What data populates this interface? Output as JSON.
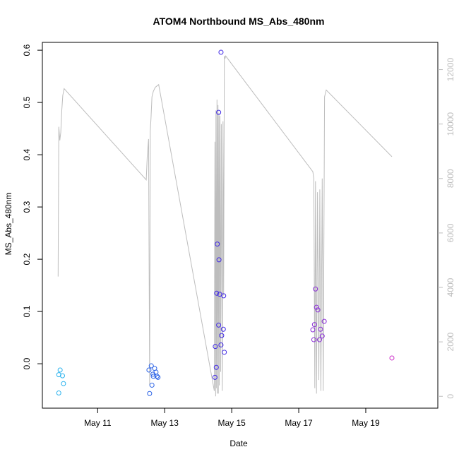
{
  "chart_data": {
    "type": "scatter",
    "title": "ATOM4 Northbound MS_Abs_480nm",
    "xlabel": "Date",
    "ylabel": "MS_Abs_480nm",
    "x_units": "days since May 10 00:00",
    "xlim": [
      -0.65,
      11.15
    ],
    "ylim": [
      -0.085,
      0.615
    ],
    "y2lim": [
      -435,
      13000
    ],
    "x_ticks": [
      {
        "value": 1,
        "label": "May 11"
      },
      {
        "value": 3,
        "label": "May 13"
      },
      {
        "value": 5,
        "label": "May 15"
      },
      {
        "value": 7,
        "label": "May 17"
      },
      {
        "value": 9,
        "label": "May 19"
      }
    ],
    "y_ticks": [
      {
        "value": 0.0,
        "label": "0.0"
      },
      {
        "value": 0.1,
        "label": "0.1"
      },
      {
        "value": 0.2,
        "label": "0.2"
      },
      {
        "value": 0.3,
        "label": "0.3"
      },
      {
        "value": 0.4,
        "label": "0.4"
      },
      {
        "value": 0.5,
        "label": "0.5"
      },
      {
        "value": 0.6,
        "label": "0.6"
      }
    ],
    "y2_ticks": [
      {
        "value": 0,
        "label": "0"
      },
      {
        "value": 2000,
        "label": "2000"
      },
      {
        "value": 4000,
        "label": "4000"
      },
      {
        "value": 6000,
        "label": "6000"
      },
      {
        "value": 8000,
        "label": "8000"
      },
      {
        "value": 10000,
        "label": "10000"
      },
      {
        "value": 12000,
        "label": "12000"
      }
    ],
    "series": [
      {
        "name": "MS_Abs_480nm",
        "kind": "points",
        "points": [
          {
            "x": -0.16,
            "y": -0.056,
            "color": "#2bb3ee"
          },
          {
            "x": -0.16,
            "y": -0.021,
            "color": "#2bb3ee"
          },
          {
            "x": -0.12,
            "y": -0.012,
            "color": "#2bb3ee"
          },
          {
            "x": -0.05,
            "y": -0.023,
            "color": "#2bb3ee"
          },
          {
            "x": -0.02,
            "y": -0.038,
            "color": "#2bb3ee"
          },
          {
            "x": 2.55,
            "y": -0.057,
            "color": "#2a62e6"
          },
          {
            "x": 2.53,
            "y": -0.012,
            "color": "#2a62e6"
          },
          {
            "x": 2.6,
            "y": -0.004,
            "color": "#2a62e6"
          },
          {
            "x": 2.62,
            "y": -0.041,
            "color": "#2a62e6"
          },
          {
            "x": 2.65,
            "y": -0.02,
            "color": "#2a62e6"
          },
          {
            "x": 2.66,
            "y": -0.024,
            "color": "#2a62e6"
          },
          {
            "x": 2.7,
            "y": -0.009,
            "color": "#2a62e6"
          },
          {
            "x": 2.74,
            "y": -0.016,
            "color": "#2a62e6"
          },
          {
            "x": 2.77,
            "y": -0.024,
            "color": "#2a62e6"
          },
          {
            "x": 2.8,
            "y": -0.026,
            "color": "#2a62e6"
          },
          {
            "x": 4.5,
            "y": -0.026,
            "color": "#3f28e6"
          },
          {
            "x": 4.51,
            "y": 0.033,
            "color": "#3f28e6"
          },
          {
            "x": 4.55,
            "y": 0.135,
            "color": "#3f28e6"
          },
          {
            "x": 4.54,
            "y": -0.007,
            "color": "#3f28e6"
          },
          {
            "x": 4.57,
            "y": 0.229,
            "color": "#3f28e6"
          },
          {
            "x": 4.61,
            "y": 0.074,
            "color": "#3f28e6"
          },
          {
            "x": 4.61,
            "y": 0.481,
            "color": "#3f28e6"
          },
          {
            "x": 4.62,
            "y": 0.199,
            "color": "#3f28e6"
          },
          {
            "x": 4.64,
            "y": 0.133,
            "color": "#3f28e6"
          },
          {
            "x": 4.68,
            "y": 0.596,
            "color": "#3f28e6"
          },
          {
            "x": 4.68,
            "y": 0.036,
            "color": "#3f28e6"
          },
          {
            "x": 4.7,
            "y": 0.054,
            "color": "#3f28e6"
          },
          {
            "x": 4.75,
            "y": 0.066,
            "color": "#3f28e6"
          },
          {
            "x": 4.76,
            "y": 0.13,
            "color": "#3f28e6"
          },
          {
            "x": 4.78,
            "y": 0.022,
            "color": "#3f28e6"
          },
          {
            "x": 7.42,
            "y": 0.065,
            "color": "#8a2ed6"
          },
          {
            "x": 7.45,
            "y": 0.046,
            "color": "#8a2ed6"
          },
          {
            "x": 7.47,
            "y": 0.075,
            "color": "#8a2ed6"
          },
          {
            "x": 7.5,
            "y": 0.143,
            "color": "#8a2ed6"
          },
          {
            "x": 7.53,
            "y": 0.108,
            "color": "#8a2ed6"
          },
          {
            "x": 7.57,
            "y": 0.103,
            "color": "#8a2ed6"
          },
          {
            "x": 7.62,
            "y": 0.046,
            "color": "#8a2ed6"
          },
          {
            "x": 7.65,
            "y": 0.066,
            "color": "#8a2ed6"
          },
          {
            "x": 7.7,
            "y": 0.053,
            "color": "#8a2ed6"
          },
          {
            "x": 7.76,
            "y": 0.081,
            "color": "#8a2ed6"
          },
          {
            "x": 9.78,
            "y": 0.011,
            "color": "#cc2ec8"
          }
        ]
      },
      {
        "name": "secondary",
        "kind": "line",
        "axis": "right",
        "color": "#bdbdbd",
        "x": [
          -0.18,
          -0.16,
          -0.13,
          -0.1,
          -0.07,
          -0.04,
          0.0,
          2.45,
          2.48,
          2.52,
          2.55,
          2.57,
          2.59,
          2.62,
          2.66,
          2.72,
          2.82,
          4.48,
          4.5,
          4.52,
          4.53,
          4.54,
          4.56,
          4.57,
          4.59,
          4.6,
          4.62,
          4.63,
          4.65,
          4.67,
          4.69,
          4.72,
          4.74,
          4.76,
          4.78,
          4.8,
          4.82,
          7.42,
          7.45,
          7.48,
          7.5,
          7.53,
          7.56,
          7.6,
          7.63,
          7.66,
          7.7,
          7.73,
          7.77,
          7.82,
          9.78
        ],
        "y": [
          4400,
          9900,
          9400,
          9700,
          10500,
          11050,
          11300,
          7950,
          8800,
          9450,
          400,
          9750,
          10200,
          11000,
          11200,
          11350,
          11450,
          200,
          9350,
          0,
          10500,
          300,
          10900,
          100,
          10700,
          100,
          10400,
          400,
          10300,
          900,
          10000,
          200,
          10100,
          3700,
          12500,
          12400,
          12500,
          8250,
          8000,
          300,
          7900,
          100,
          7500,
          600,
          7600,
          200,
          8000,
          200,
          11000,
          11250,
          8800
        ]
      }
    ]
  }
}
